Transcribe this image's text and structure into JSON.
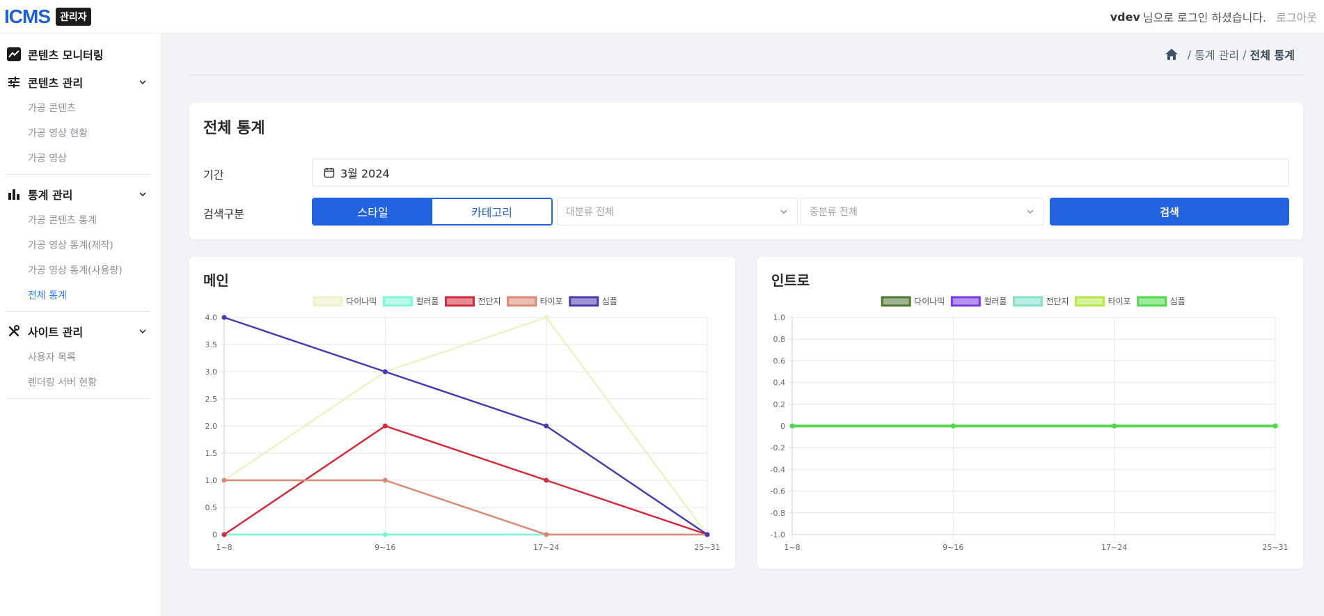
{
  "header": {
    "logo_main": "ICMS",
    "admin_badge": "관리자",
    "user_name": "vdev",
    "user_suffix": "님으로 로그인 하셨습니다.",
    "logout_label": "로그아웃"
  },
  "sidebar": {
    "monitoring_label": "콘텐츠 모니터링",
    "content_group": {
      "label": "콘텐츠 관리",
      "items": [
        "가공 콘텐츠",
        "가공 영상 현황",
        "가공 영상"
      ]
    },
    "stats_group": {
      "label": "통계 관리",
      "items": [
        "가공 콘텐츠 통계",
        "가공 영상 통계(제작)",
        "가공 영상 통계(사용량)",
        "전체 통계"
      ]
    },
    "site_group": {
      "label": "사이트 관리",
      "items": [
        "사용자 목록",
        "렌더링 서버 현황"
      ]
    }
  },
  "breadcrumb": {
    "parent": "통계 관리",
    "current": "전체 통계",
    "separator": "/"
  },
  "filter": {
    "title": "전체 통계",
    "period_label": "기간",
    "period_value": "3월 2024",
    "search_type_label": "검색구분",
    "seg_style": "스타일",
    "seg_category": "카테고리",
    "major_select": "대분류 전체",
    "middle_select": "중분류 전체",
    "search_button": "검색"
  },
  "chart_data": [
    {
      "type": "line",
      "title": "메인",
      "categories": [
        "1~8",
        "9~16",
        "17~24",
        "25~31"
      ],
      "ylim": [
        0,
        4
      ],
      "yticks": [
        "0",
        "0.5",
        "1.0",
        "1.5",
        "2.0",
        "2.5",
        "3.0",
        "3.5",
        "4.0"
      ],
      "legend_position": "top-center",
      "grid": true,
      "series": [
        {
          "name": "다이나믹",
          "color": "#eef0c8",
          "values": [
            1,
            3,
            4,
            0
          ]
        },
        {
          "name": "컬러풀",
          "color": "#7ff5d4",
          "values": [
            0,
            0,
            0,
            0
          ]
        },
        {
          "name": "전단지",
          "color": "#d42a3c",
          "values": [
            0,
            2,
            1,
            0
          ]
        },
        {
          "name": "타이포",
          "color": "#d98a74",
          "values": [
            1,
            1,
            0,
            0
          ]
        },
        {
          "name": "심플",
          "color": "#4a3bb0",
          "values": [
            4,
            3,
            2,
            0
          ]
        }
      ]
    },
    {
      "type": "line",
      "title": "인트로",
      "categories": [
        "1~8",
        "9~16",
        "17~24",
        "25~31"
      ],
      "ylim": [
        -1,
        1
      ],
      "yticks": [
        "-1.0",
        "-0.8",
        "-0.6",
        "-0.4",
        "-0.2",
        "0",
        "0.2",
        "0.4",
        "0.6",
        "0.8",
        "1.0"
      ],
      "legend_position": "top-center",
      "grid": true,
      "series": [
        {
          "name": "다이나믹",
          "color": "#4f7a33",
          "values": [
            0,
            0,
            0,
            0
          ]
        },
        {
          "name": "컬러풀",
          "color": "#7a3be0",
          "values": [
            0,
            0,
            0,
            0
          ]
        },
        {
          "name": "전단지",
          "color": "#7fe0cc",
          "values": [
            0,
            0,
            0,
            0
          ]
        },
        {
          "name": "타이포",
          "color": "#b6e84a",
          "values": [
            0,
            0,
            0,
            0
          ]
        },
        {
          "name": "심플",
          "color": "#4fd84a",
          "values": [
            0,
            0,
            0,
            0
          ]
        }
      ]
    }
  ]
}
